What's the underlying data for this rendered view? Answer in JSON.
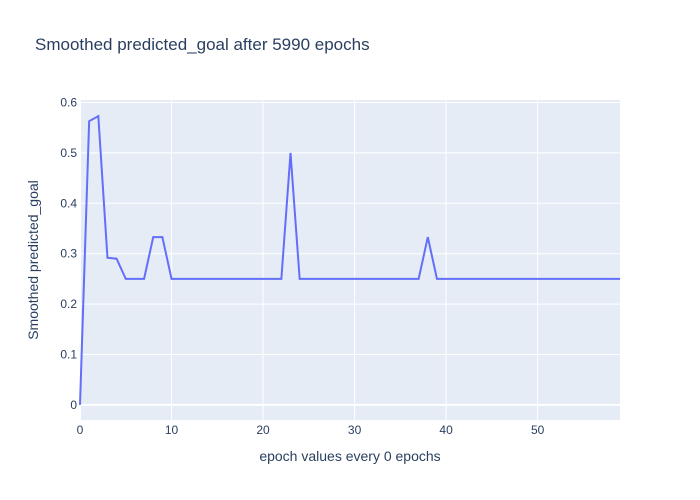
{
  "chart_data": {
    "type": "line",
    "title": "Smoothed predicted_goal after 5990 epochs",
    "xlabel": "epoch values every 0 epochs",
    "ylabel": "Smoothed predicted_goal",
    "xlim": [
      0,
      59
    ],
    "ylim": [
      -0.03,
      0.605
    ],
    "xticks": [
      0,
      10,
      20,
      30,
      40,
      50
    ],
    "yticks": [
      0,
      0.1,
      0.2,
      0.3,
      0.4,
      0.5,
      0.6
    ],
    "xtick_labels": [
      "0",
      "10",
      "20",
      "30",
      "40",
      "50"
    ],
    "ytick_labels": [
      "0",
      "0.1",
      "0.2",
      "0.3",
      "0.4",
      "0.5",
      "0.6"
    ],
    "grid": true,
    "colors": {
      "line": "#636efa",
      "plot_bg": "#e5ecf6",
      "grid": "#ffffff",
      "text": "#2a3f5f"
    },
    "series": [
      {
        "x": [
          0,
          1,
          2,
          3,
          4,
          5,
          6,
          7,
          8,
          9,
          10,
          11,
          12,
          13,
          14,
          15,
          16,
          17,
          18,
          19,
          20,
          21,
          22,
          23,
          24,
          25,
          26,
          27,
          28,
          29,
          30,
          31,
          32,
          33,
          34,
          35,
          36,
          37,
          38,
          39,
          40,
          41,
          42,
          43,
          44,
          45,
          46,
          47,
          48,
          49,
          50,
          51,
          52,
          53,
          54,
          55,
          56,
          57,
          58,
          59
        ],
        "values": [
          0,
          0.563,
          0.573,
          0.292,
          0.29,
          0.25,
          0.25,
          0.25,
          0.333,
          0.333,
          0.25,
          0.25,
          0.25,
          0.25,
          0.25,
          0.25,
          0.25,
          0.25,
          0.25,
          0.25,
          0.25,
          0.25,
          0.25,
          0.5,
          0.25,
          0.25,
          0.25,
          0.25,
          0.25,
          0.25,
          0.25,
          0.25,
          0.25,
          0.25,
          0.25,
          0.25,
          0.25,
          0.25,
          0.333,
          0.25,
          0.25,
          0.25,
          0.25,
          0.25,
          0.25,
          0.25,
          0.25,
          0.25,
          0.25,
          0.25,
          0.25,
          0.25,
          0.25,
          0.25,
          0.25,
          0.25,
          0.25,
          0.25,
          0.25,
          0.25
        ]
      }
    ]
  }
}
